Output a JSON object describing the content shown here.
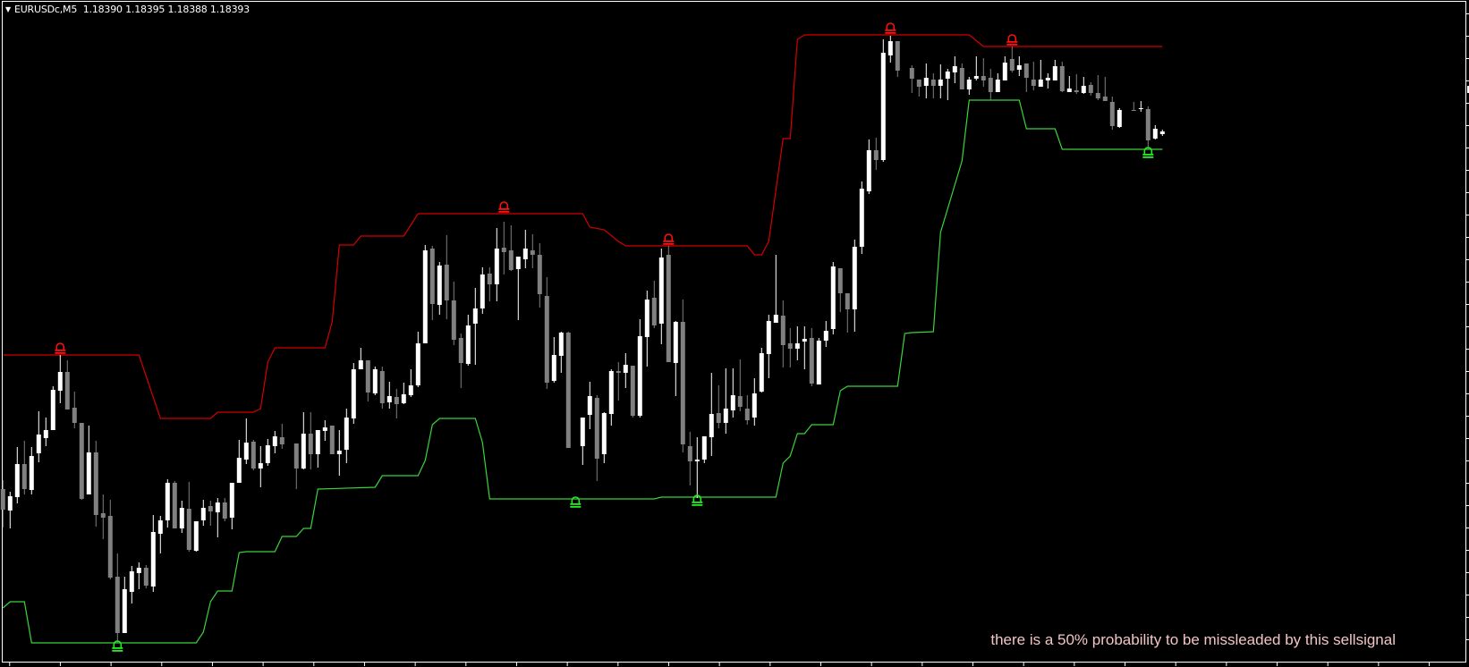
{
  "header": {
    "menu_icon": "triangle-down-icon",
    "symbol": "EURUSDc,M5",
    "ohlc": "1.18390 1.18395 1.18388 1.18393"
  },
  "message": "there is a 50% probability to be missleaded by this sellsignal",
  "colors": {
    "background": "#000000",
    "frame": "#ffffff",
    "bull_candle": "#ffffff",
    "bear_candle": "#808080",
    "upper_channel": "#d40000",
    "lower_channel": "#3ad43a",
    "sell_signal": "#ff1010",
    "buy_signal": "#22ee22",
    "message": "#f2c4c4"
  },
  "chart_data": {
    "type": "candlestick",
    "symbol": "EURUSDc",
    "timeframe": "M5",
    "grid": false,
    "last": {
      "open": 1.1839,
      "high": 1.18395,
      "low": 1.18388,
      "close": 1.18393
    },
    "candle_fields": [
      "open",
      "high",
      "low",
      "close"
    ],
    "candles": [
      [
        1.17993,
        1.18003,
        1.1795,
        1.1797
      ],
      [
        1.17969,
        1.1799,
        1.17949,
        1.17985
      ],
      [
        1.17984,
        1.1804,
        1.17977,
        1.18021
      ],
      [
        1.18021,
        1.18047,
        1.17987,
        1.17993
      ],
      [
        1.17992,
        1.1804,
        1.17987,
        1.1803
      ],
      [
        1.18033,
        1.1808,
        1.18023,
        1.18054
      ],
      [
        1.1805,
        1.18073,
        1.18041,
        1.18059
      ],
      [
        1.18059,
        1.18108,
        1.18059,
        1.18104
      ],
      [
        1.18103,
        1.18143,
        1.18089,
        1.18124
      ],
      [
        1.18124,
        1.18137,
        1.18082,
        1.18082
      ],
      [
        1.18084,
        1.18102,
        1.18061,
        1.18067
      ],
      [
        1.18067,
        1.18067,
        1.17981,
        1.17982
      ],
      [
        1.17987,
        1.18064,
        1.17987,
        1.18034
      ],
      [
        1.18034,
        1.18047,
        1.17951,
        1.17964
      ],
      [
        1.17966,
        1.17987,
        1.17937,
        1.17961
      ],
      [
        1.17963,
        1.17981,
        1.17892,
        1.17894
      ],
      [
        1.17895,
        1.17921,
        1.17821,
        1.17832
      ],
      [
        1.17832,
        1.17895,
        1.17832,
        1.17881
      ],
      [
        1.17878,
        1.17907,
        1.17865,
        1.17901
      ],
      [
        1.17899,
        1.17911,
        1.17881,
        1.17905
      ],
      [
        1.17905,
        1.17908,
        1.17882,
        1.17885
      ],
      [
        1.17884,
        1.17964,
        1.17878,
        1.17945
      ],
      [
        1.17943,
        1.17963,
        1.17921,
        1.17958
      ],
      [
        1.17958,
        1.18004,
        1.1795,
        1.18
      ],
      [
        1.18,
        1.18002,
        1.17949,
        1.17949
      ],
      [
        1.17949,
        1.1798,
        1.17944,
        1.17972
      ],
      [
        1.17971,
        1.18001,
        1.17923,
        1.17925
      ],
      [
        1.17924,
        1.17957,
        1.17923,
        1.17957
      ],
      [
        1.17958,
        1.17981,
        1.17952,
        1.17972
      ],
      [
        1.17974,
        1.1798,
        1.17952,
        1.17968
      ],
      [
        1.17967,
        1.17983,
        1.17939,
        1.17978
      ],
      [
        1.17978,
        1.17983,
        1.17957,
        1.1796
      ],
      [
        1.17961,
        1.18,
        1.17948,
        1.18
      ],
      [
        1.18,
        1.18048,
        1.18,
        1.18028
      ],
      [
        1.18026,
        1.18072,
        1.18021,
        1.18045
      ],
      [
        1.18046,
        1.18048,
        1.18014,
        1.18016
      ],
      [
        1.18016,
        1.18041,
        1.17995,
        1.18022
      ],
      [
        1.18022,
        1.18049,
        1.18019,
        1.18042
      ],
      [
        1.18041,
        1.18058,
        1.18033,
        1.18052
      ],
      [
        1.18051,
        1.18066,
        1.18038,
        1.18043
      ],
      null,
      [
        1.18044,
        1.18044,
        1.17993,
        1.18016
      ],
      [
        1.18016,
        1.18079,
        1.18015,
        1.18055
      ],
      [
        1.18055,
        1.18079,
        1.18015,
        1.18032
      ],
      [
        1.18032,
        1.18059,
        1.18017,
        1.18059
      ],
      [
        1.18058,
        1.1807,
        1.18047,
        1.18062
      ],
      [
        1.18064,
        1.18064,
        1.18032,
        1.18032
      ],
      [
        1.18032,
        1.18059,
        1.18008,
        1.18036
      ],
      [
        1.18037,
        1.18083,
        1.18022,
        1.18073
      ],
      [
        1.18072,
        1.18134,
        1.18066,
        1.18127
      ],
      [
        1.18127,
        1.18151,
        1.18127,
        1.18137
      ],
      [
        1.18137,
        1.18137,
        1.18091,
        1.18101
      ],
      [
        1.181,
        1.1813,
        1.18098,
        1.18127
      ],
      [
        1.18125,
        1.1813,
        1.18083,
        1.18089
      ],
      [
        1.1809,
        1.18113,
        1.18083,
        1.18097
      ],
      [
        1.18096,
        1.18105,
        1.18072,
        1.18088
      ],
      [
        1.18089,
        1.18112,
        1.18088,
        1.18099
      ],
      [
        1.18098,
        1.18127,
        1.18096,
        1.18109
      ],
      [
        1.18109,
        1.18169,
        1.18107,
        1.18156
      ],
      [
        1.18156,
        1.18266,
        1.18156,
        1.1826
      ],
      [
        1.18262,
        1.18265,
        1.18182,
        1.182
      ],
      [
        1.18199,
        1.18247,
        1.18188,
        1.18243
      ],
      [
        1.18244,
        1.18277,
        1.18183,
        1.18204
      ],
      [
        1.18204,
        1.18225,
        1.18154,
        1.1816
      ],
      [
        1.18162,
        1.18167,
        1.18106,
        1.18134
      ],
      [
        1.18133,
        1.18188,
        1.18131,
        1.18176
      ],
      [
        1.18178,
        1.18218,
        1.18132,
        1.18195
      ],
      [
        1.18195,
        1.18241,
        1.18189,
        1.18233
      ],
      [
        1.18234,
        1.18241,
        1.18203,
        1.18222
      ],
      [
        1.18222,
        1.18285,
        1.18203,
        1.18262
      ],
      [
        1.18263,
        1.18292,
        1.18233,
        1.18258
      ],
      [
        1.1826,
        1.18288,
        1.18237,
        1.18238
      ],
      [
        1.18239,
        1.18253,
        1.18182,
        1.18253
      ],
      [
        1.1825,
        1.18283,
        1.1824,
        1.18262
      ],
      [
        1.1826,
        1.18278,
        1.1824,
        1.18255
      ],
      [
        1.18255,
        1.18268,
        1.18196,
        1.18211
      ],
      [
        1.18209,
        1.1823,
        1.18105,
        1.18112
      ],
      [
        1.18114,
        1.18163,
        1.18112,
        1.18143
      ],
      [
        1.18142,
        1.18169,
        1.18123,
        1.18168
      ],
      [
        1.18168,
        1.18169,
        1.18039,
        1.18039
      ],
      null,
      [
        1.18041,
        1.18073,
        1.1802,
        1.18073
      ],
      [
        1.18076,
        1.18113,
        1.1806,
        1.18097
      ],
      [
        1.18095,
        1.18098,
        1.18002,
        1.18027
      ],
      [
        1.18032,
        1.18079,
        1.18022,
        1.18078
      ],
      [
        1.18077,
        1.18127,
        1.18064,
        1.18125
      ],
      [
        1.18125,
        1.18135,
        1.18092,
        1.18123
      ],
      [
        1.18123,
        1.18145,
        1.18106,
        1.18132
      ],
      [
        1.18131,
        1.18131,
        1.18073,
        1.18075
      ],
      [
        1.18075,
        1.18183,
        1.18073,
        1.18164
      ],
      [
        1.18163,
        1.18215,
        1.1813,
        1.18205
      ],
      [
        1.18207,
        1.18226,
        1.18173,
        1.18176
      ],
      [
        1.18178,
        1.18262,
        1.18155,
        1.18252
      ],
      [
        1.18255,
        1.18265,
        1.18135,
        1.18135
      ],
      [
        1.18134,
        1.18181,
        1.18097,
        1.1818
      ],
      [
        1.1818,
        1.18205,
        1.18034,
        1.18043
      ],
      [
        1.18041,
        1.18057,
        1.17997,
        1.18024
      ],
      [
        1.18024,
        1.18051,
        1.17983,
        1.18026
      ],
      [
        1.18026,
        1.18052,
        1.18022,
        1.18052
      ],
      [
        1.18051,
        1.18123,
        1.1803,
        1.18077
      ],
      [
        1.18078,
        1.18109,
        1.18061,
        1.18067
      ],
      [
        1.18067,
        1.18128,
        1.18055,
        1.18083
      ],
      [
        1.18081,
        1.18128,
        1.18073,
        1.18098
      ],
      [
        1.18097,
        1.18138,
        1.1808,
        1.18085
      ],
      [
        1.18083,
        1.18098,
        1.18065,
        1.1807
      ],
      [
        1.18073,
        1.18117,
        1.18064,
        1.181
      ],
      [
        1.18102,
        1.18151,
        1.18101,
        1.18145
      ],
      [
        1.18144,
        1.18188,
        1.18117,
        1.18181
      ],
      [
        1.18179,
        1.18255,
        1.18179,
        1.18188
      ],
      [
        1.18187,
        1.18204,
        1.18129,
        1.18154
      ],
      [
        1.18156,
        1.18173,
        1.18129,
        1.1815
      ],
      [
        1.1815,
        1.18175,
        1.18137,
        1.18156
      ],
      [
        1.18158,
        1.18175,
        1.18127,
        1.18161
      ],
      [
        1.18162,
        1.18173,
        1.18108,
        1.18111
      ],
      [
        1.1811,
        1.18162,
        1.1811,
        1.18159
      ],
      [
        1.18159,
        1.18181,
        1.18152,
        1.1817
      ],
      [
        1.18172,
        1.18247,
        1.18166,
        1.18242
      ],
      [
        1.1824,
        1.1824,
        1.18191,
        1.18212
      ],
      [
        1.18212,
        1.18212,
        1.18168,
        1.18194
      ],
      [
        1.18194,
        1.18272,
        1.18169,
        1.18264
      ],
      [
        1.18264,
        1.18337,
        1.18256,
        1.18329
      ],
      [
        1.18326,
        1.18384,
        1.18323,
        1.18372
      ],
      [
        1.18372,
        1.18386,
        1.1835,
        1.18361
      ],
      [
        1.18361,
        1.18496,
        1.18359,
        1.18481
      ],
      [
        1.18478,
        1.185,
        1.1847,
        1.18494
      ],
      [
        1.18494,
        1.18494,
        1.18454,
        1.18461
      ],
      null,
      [
        1.18464,
        1.18467,
        1.18436,
        1.18452
      ],
      [
        1.18451,
        1.18451,
        1.18432,
        1.18443
      ],
      [
        1.18444,
        1.18469,
        1.1843,
        1.18453
      ],
      [
        1.18451,
        1.18458,
        1.1843,
        1.18444
      ],
      [
        1.18444,
        1.18468,
        1.1843,
        1.18451
      ],
      [
        1.18452,
        1.18463,
        1.18428,
        1.1846
      ],
      [
        1.18459,
        1.18477,
        1.18447,
        1.18466
      ],
      [
        1.18464,
        1.18469,
        1.1844,
        1.1844
      ],
      [
        1.1844,
        1.18454,
        1.18434,
        1.18451
      ],
      [
        1.18452,
        1.18477,
        1.1845,
        1.18455
      ],
      [
        1.18455,
        1.18475,
        1.18443,
        1.1845
      ],
      [
        1.18453,
        1.18463,
        1.18428,
        1.18437
      ],
      [
        1.18437,
        1.18458,
        1.18437,
        1.18451
      ],
      [
        1.1845,
        1.18477,
        1.1845,
        1.1847
      ],
      [
        1.18474,
        1.18488,
        1.18459,
        1.18461
      ],
      [
        1.18462,
        1.18477,
        1.18455,
        1.18467
      ],
      [
        1.18469,
        1.18469,
        1.18437,
        1.18453
      ],
      [
        1.18451,
        1.18471,
        1.18439,
        1.18444
      ],
      [
        1.18443,
        1.18473,
        1.18443,
        1.18451
      ],
      [
        1.1845,
        1.18458,
        1.18441,
        1.18453
      ],
      [
        1.1845,
        1.18473,
        1.1845,
        1.18466
      ],
      [
        1.18466,
        1.18471,
        1.18437,
        1.18438
      ],
      [
        1.18437,
        1.18455,
        1.18437,
        1.18441
      ],
      [
        1.18439,
        1.18457,
        1.18435,
        1.18437
      ],
      [
        1.18436,
        1.18454,
        1.18435,
        1.18444
      ],
      [
        1.18445,
        1.18448,
        1.18433,
        1.18436
      ],
      [
        1.18436,
        1.18456,
        1.18428,
        1.1843
      ],
      [
        1.18432,
        1.18454,
        1.18427,
        1.18427
      ],
      [
        1.18426,
        1.18432,
        1.18395,
        1.18399
      ],
      [
        1.18398,
        1.18419,
        1.18397,
        1.18417
      ],
      null,
      [
        1.18417,
        1.18426,
        1.18416,
        1.18416
      ],
      [
        1.18418,
        1.18427,
        1.18415,
        1.18419
      ],
      [
        1.18418,
        1.18421,
        1.18373,
        1.18383
      ],
      [
        1.18385,
        1.184,
        1.18384,
        1.18396
      ],
      [
        1.1839,
        1.18395,
        1.18388,
        1.18393
      ]
    ],
    "upper_channel": [
      [
        0,
        1.18143
      ],
      [
        19,
        1.18143
      ],
      [
        22,
        1.18072
      ],
      [
        29,
        1.18072
      ],
      [
        30,
        1.18079
      ],
      [
        35,
        1.18079
      ],
      [
        36,
        1.18083
      ],
      [
        37,
        1.18135
      ],
      [
        38,
        1.18151
      ],
      [
        45,
        1.18151
      ],
      [
        46,
        1.1818
      ],
      [
        47,
        1.18266
      ],
      [
        49,
        1.18266
      ],
      [
        50,
        1.18276
      ],
      [
        56,
        1.18276
      ],
      [
        58,
        1.18301
      ],
      [
        81,
        1.18301
      ],
      [
        82,
        1.18286
      ],
      [
        84,
        1.18283
      ],
      [
        86,
        1.1827
      ],
      [
        87,
        1.18265
      ],
      [
        104,
        1.18265
      ],
      [
        105,
        1.18255
      ],
      [
        106,
        1.18255
      ],
      [
        107,
        1.1827
      ],
      [
        109,
        1.18385
      ],
      [
        110,
        1.18385
      ],
      [
        111,
        1.18496
      ],
      [
        112,
        1.18501
      ],
      [
        135,
        1.18501
      ],
      [
        137,
        1.18488
      ],
      [
        162,
        1.18488
      ]
    ],
    "lower_channel": [
      [
        0,
        1.1786
      ],
      [
        1,
        1.17867
      ],
      [
        3,
        1.17867
      ],
      [
        4,
        1.17821
      ],
      [
        27,
        1.17821
      ],
      [
        28,
        1.17833
      ],
      [
        29,
        1.17867
      ],
      [
        30,
        1.17879
      ],
      [
        32,
        1.17879
      ],
      [
        33,
        1.17922
      ],
      [
        34,
        1.17923
      ],
      [
        38,
        1.17923
      ],
      [
        39,
        1.1794
      ],
      [
        41,
        1.1794
      ],
      [
        42,
        1.17949
      ],
      [
        43,
        1.17949
      ],
      [
        44,
        1.17993
      ],
      [
        52,
        1.17995
      ],
      [
        53,
        1.18008
      ],
      [
        58,
        1.18008
      ],
      [
        59,
        1.18025
      ],
      [
        60,
        1.18065
      ],
      [
        61,
        1.18072
      ],
      [
        66,
        1.18072
      ],
      [
        67,
        1.18045
      ],
      [
        68,
        1.17982
      ],
      [
        91,
        1.17982
      ],
      [
        92,
        1.17984
      ],
      [
        108,
        1.17984
      ],
      [
        109,
        1.18022
      ],
      [
        110,
        1.1803
      ],
      [
        111,
        1.18055
      ],
      [
        112,
        1.18055
      ],
      [
        113,
        1.18065
      ],
      [
        116,
        1.18065
      ],
      [
        117,
        1.18103
      ],
      [
        118,
        1.18108
      ],
      [
        125,
        1.18108
      ],
      [
        126,
        1.18167
      ],
      [
        127,
        1.18168
      ],
      [
        130,
        1.18169
      ],
      [
        131,
        1.1828
      ],
      [
        134,
        1.1836
      ],
      [
        135,
        1.18428
      ],
      [
        142,
        1.18428
      ],
      [
        143,
        1.18396
      ],
      [
        147,
        1.18396
      ],
      [
        148,
        1.18373
      ],
      [
        162,
        1.18373
      ]
    ],
    "sell_signals": [
      [
        8,
        1.18143
      ],
      [
        70,
        1.18301
      ],
      [
        93,
        1.18265
      ],
      [
        124,
        1.18501
      ],
      [
        141,
        1.18488
      ]
    ],
    "buy_signals": [
      [
        16,
        1.17821
      ],
      [
        80,
        1.17982
      ],
      [
        97,
        1.17984
      ],
      [
        160,
        1.18373
      ]
    ]
  }
}
